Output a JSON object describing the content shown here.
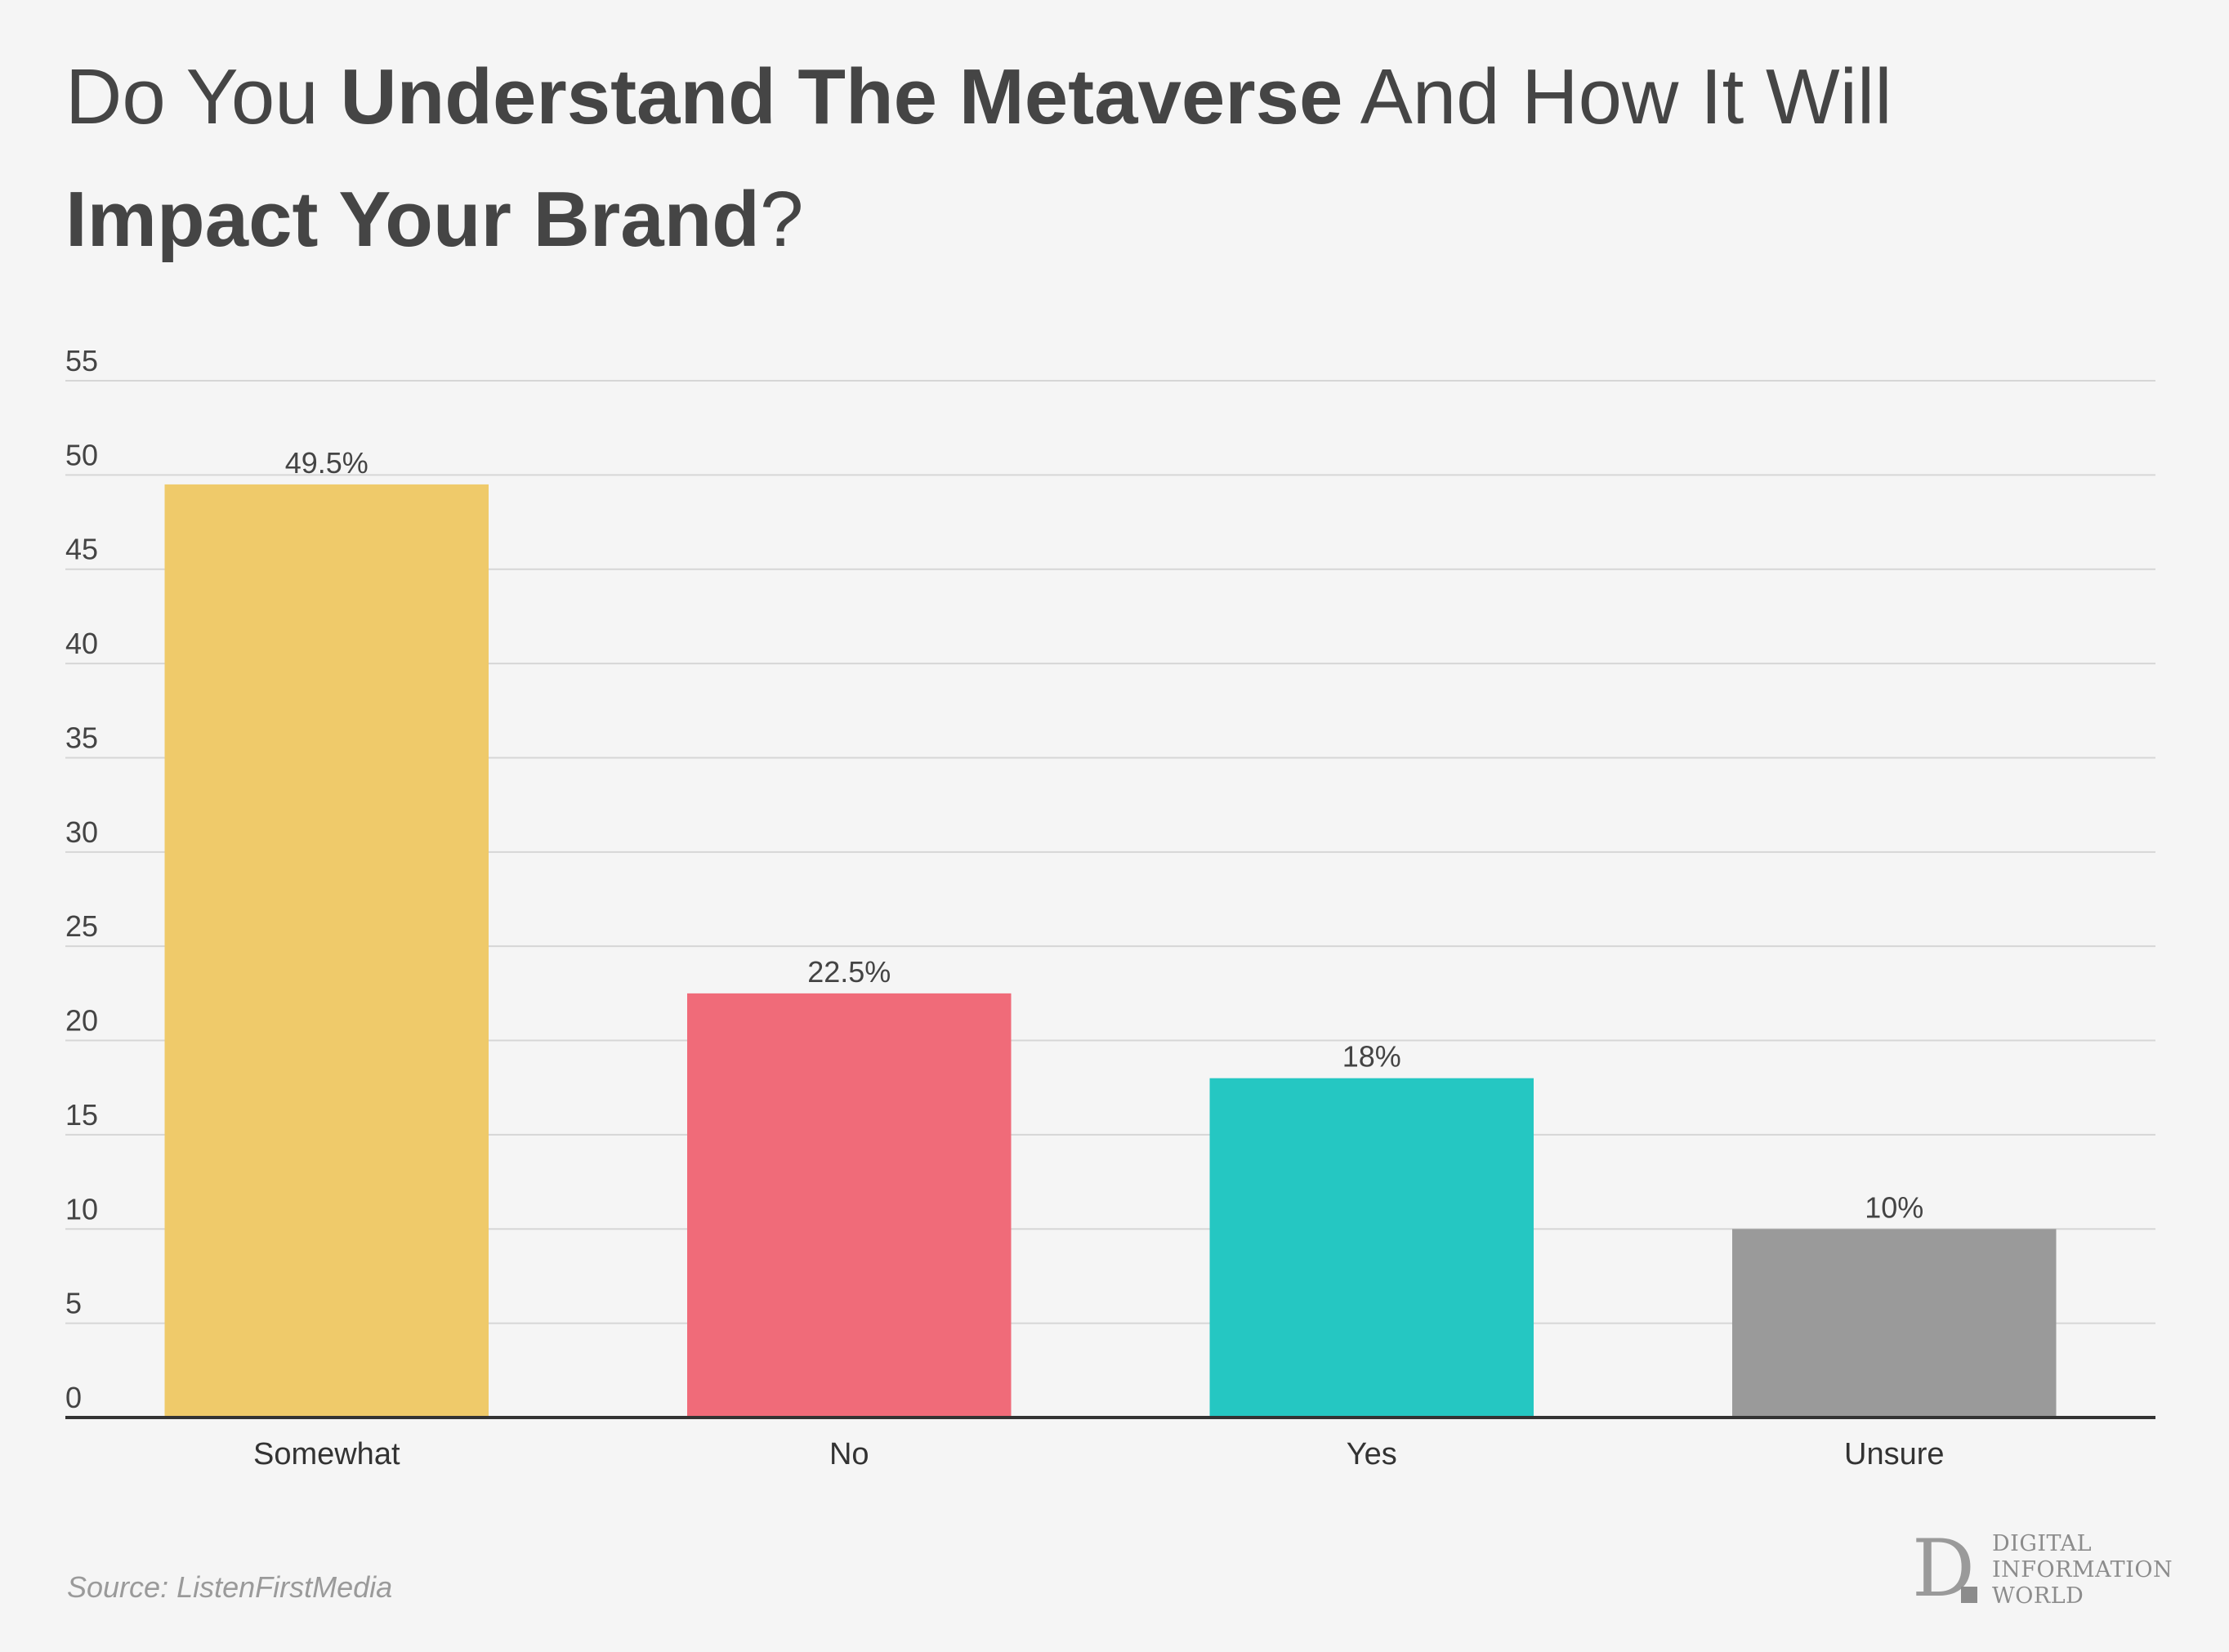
{
  "title": {
    "part1": "Do You ",
    "part2": "Understand The Metaverse",
    "part3": " And How It Will ",
    "part4": "Impact Your Brand",
    "part5": "?"
  },
  "chart_data": {
    "type": "bar",
    "title": "Do You Understand The Metaverse And How It Will Impact Your Brand?",
    "categories": [
      "Somewhat",
      "No",
      "Yes",
      "Unsure"
    ],
    "values": [
      49.5,
      22.5,
      18,
      10
    ],
    "value_labels": [
      "49.5%",
      "22.5%",
      "18%",
      "10%"
    ],
    "colors": [
      "#efca6a",
      "#f06b79",
      "#25c7c2",
      "#9a9a9a"
    ],
    "yticks": [
      "0",
      "5",
      "10",
      "15",
      "20",
      "25",
      "30",
      "35",
      "40",
      "45",
      "50",
      "55"
    ],
    "ylim": [
      0,
      55
    ],
    "xlabel": "",
    "ylabel": "",
    "grid": true,
    "legend": "none"
  },
  "source": "Source: ListenFirstMedia",
  "logo": {
    "letter": "D",
    "lines": [
      "DIGITAL",
      "INFORMATION",
      "WORLD"
    ]
  }
}
